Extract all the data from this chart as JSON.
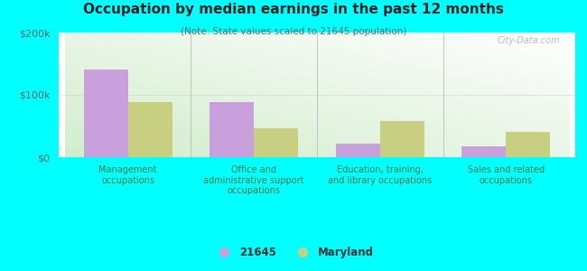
{
  "title": "Occupation by median earnings in the past 12 months",
  "subtitle": "(Note: State values scaled to 21645 population)",
  "categories": [
    "Management\noccupations",
    "Office and\nadministrative support\noccupations",
    "Education, training,\nand library occupations",
    "Sales and related\noccupations"
  ],
  "values_21645": [
    140000,
    88000,
    22000,
    17000
  ],
  "values_maryland": [
    88000,
    47000,
    58000,
    40000
  ],
  "color_21645": "#c9a0dc",
  "color_maryland": "#c8cf80",
  "ylim": [
    0,
    200000
  ],
  "yticks": [
    0,
    100000,
    200000
  ],
  "ytick_labels": [
    "$0",
    "$100k",
    "$200k"
  ],
  "background_color": "#00ffff",
  "legend_label_21645": "21645",
  "legend_label_maryland": "Maryland",
  "watermark": "City-Data.com",
  "bar_width": 0.35
}
